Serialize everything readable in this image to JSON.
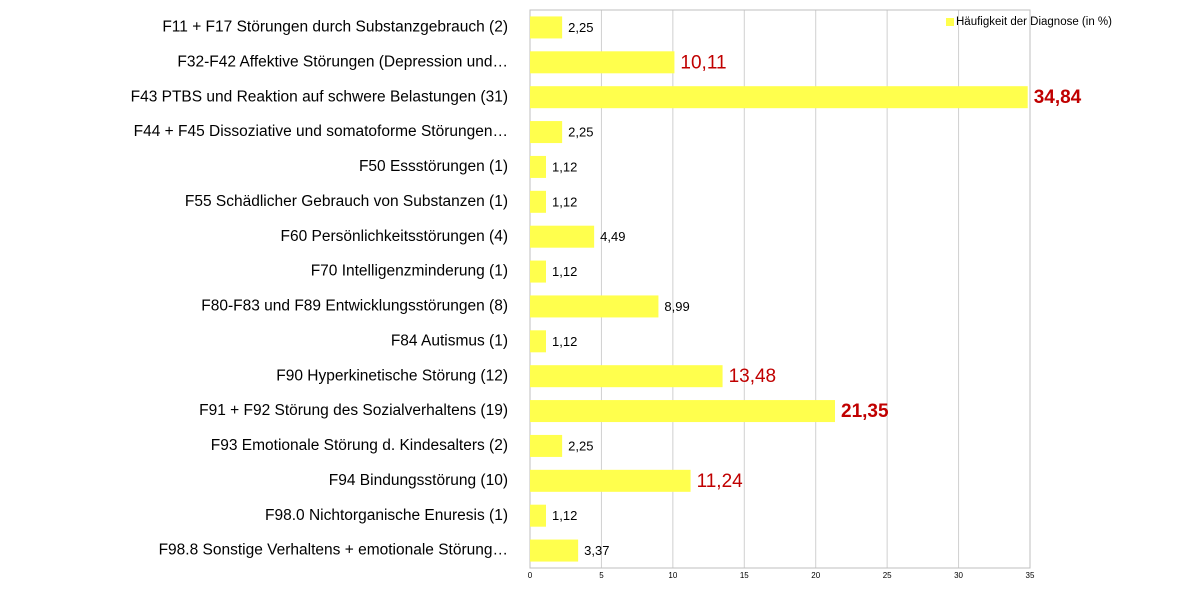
{
  "chart_data": {
    "type": "hbar",
    "categories": [
      "F11 + F17 Störungen durch Substanzgebrauch (2)",
      "F32-F42 Affektive Störungen (Depression und…",
      "F43 PTBS und Reaktion auf schwere Belastungen (31)",
      "F44 + F45 Dissoziative und somatoforme Störungen…",
      "F50 Essstörungen (1)",
      "F55 Schädlicher Gebrauch von Substanzen (1)",
      "F60 Persönlichkeitsstörungen (4)",
      "F70 Intelligenzminderung (1)",
      "F80-F83 und F89 Entwicklungsstörungen (8)",
      "F84 Autismus (1)",
      "F90 Hyperkinetische Störung (12)",
      "F91 + F92 Störung des Sozialverhaltens (19)",
      "F93 Emotionale Störung d. Kindesalters (2)",
      "F94 Bindungsstörung (10)",
      "F98.0 Nichtorganische Enuresis (1)",
      "F98.8 Sonstige Verhaltens + emotionale Störung…"
    ],
    "series": [
      {
        "name": "Häufigkeit der Diagnose (in %)",
        "color": "#ffff4d",
        "values": [
          2.25,
          10.11,
          34.84,
          2.25,
          1.12,
          1.12,
          4.49,
          1.12,
          8.99,
          1.12,
          13.48,
          21.35,
          2.25,
          11.24,
          1.12,
          3.37
        ],
        "value_labels": [
          "2,25",
          "10,11",
          "34,84",
          "2,25",
          "1,12",
          "1,12",
          "4,49",
          "1,12",
          "8,99",
          "1,12",
          "13,48",
          "21,35",
          "2,25",
          "11,24",
          "1,12",
          "3,37"
        ],
        "value_label_colors": [
          "#000000",
          "#c00000",
          "#c00000",
          "#000000",
          "#000000",
          "#000000",
          "#000000",
          "#000000",
          "#000000",
          "#000000",
          "#c00000",
          "#c00000",
          "#000000",
          "#c00000",
          "#000000",
          "#000000"
        ],
        "value_label_weights": [
          "normal",
          "normal",
          "bold",
          "normal",
          "normal",
          "normal",
          "normal",
          "normal",
          "normal",
          "normal",
          "normal",
          "bold",
          "normal",
          "normal",
          "normal",
          "normal"
        ]
      }
    ],
    "xlim": [
      0,
      35
    ],
    "xticks": [
      0,
      5,
      10,
      15,
      20,
      25,
      30,
      35
    ],
    "grid": true,
    "legend": "top-right"
  }
}
